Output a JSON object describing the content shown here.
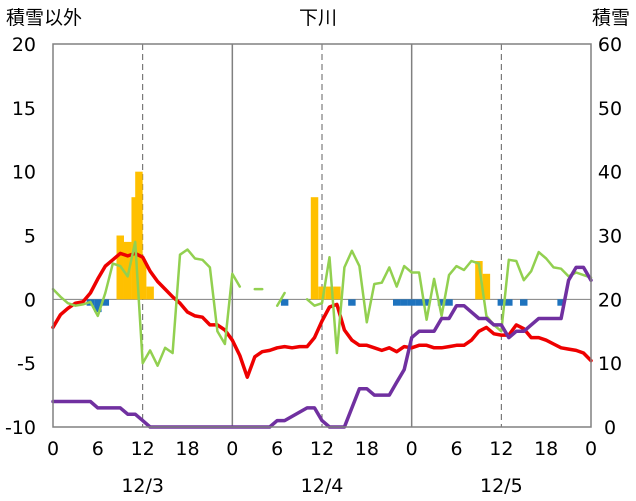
{
  "chart_data": {
    "type": "bar+line",
    "title": "下川",
    "ylabel_left": "積雪以外",
    "ylabel_right": "積雪",
    "ylim_left": [
      -10,
      20
    ],
    "ylim_right": [
      0,
      60
    ],
    "yticks_left": [
      "-10",
      "-5",
      "0",
      "5",
      "10",
      "15",
      "20"
    ],
    "yticks_right": [
      "0",
      "10",
      "20",
      "30",
      "40",
      "50",
      "60"
    ],
    "x_range_hours": [
      0,
      72
    ],
    "xtick_labels": [
      "0",
      "6",
      "12",
      "18",
      "0",
      "6",
      "12",
      "18",
      "0",
      "6",
      "12",
      "18",
      "0"
    ],
    "date_labels": [
      {
        "label": "12/3",
        "hour": 12
      },
      {
        "label": "12/4",
        "hour": 36
      },
      {
        "label": "12/5",
        "hour": 60
      }
    ],
    "grid": {
      "day_lines_solid_hours": [
        24,
        48
      ],
      "noon_lines_dashed_hours": [
        12,
        36,
        60
      ]
    },
    "colors": {
      "orange": "#ffc000",
      "blue": "#1e73be",
      "red": "#ee0000",
      "green": "#92d050",
      "purple": "#7030a0",
      "grid_solid": "#808080",
      "grid_dashed": "#606060"
    },
    "series": [
      {
        "kind": "bar",
        "axis": "left",
        "color": "#ffc000",
        "x": [
          9,
          10,
          11,
          11.5,
          12,
          13,
          35,
          36,
          37,
          38,
          57,
          58
        ],
        "y": [
          5,
          4.5,
          8,
          10,
          3,
          1,
          8,
          1,
          1,
          1,
          3,
          2
        ]
      },
      {
        "kind": "bar",
        "axis": "left",
        "color": "#1e73be",
        "baseline": 0,
        "x": [
          5,
          6,
          7,
          31,
          40,
          46,
          47,
          48,
          49,
          50,
          52,
          53,
          60,
          61,
          63,
          68
        ],
        "y": [
          -0.5,
          -1,
          -0.5,
          -0.5,
          -0.5,
          -0.5,
          -0.5,
          -0.5,
          -0.5,
          -0.5,
          -0.5,
          -0.5,
          -0.5,
          -0.5,
          -0.5,
          -0.5
        ]
      },
      {
        "kind": "line",
        "axis": "left",
        "color": "#ee0000",
        "x": [
          0,
          1,
          2,
          3,
          4,
          5,
          6,
          7,
          8,
          9,
          10,
          11,
          12,
          13,
          14,
          15,
          16,
          17,
          18,
          19,
          20,
          21,
          22,
          23,
          24,
          25,
          26,
          27,
          28,
          29,
          30,
          31,
          32,
          33,
          34,
          35,
          36,
          37,
          38,
          39,
          40,
          41,
          42,
          43,
          44,
          45,
          46,
          47,
          48,
          49,
          50,
          51,
          52,
          53,
          54,
          55,
          56,
          57,
          58,
          59,
          60,
          61,
          62,
          63,
          64,
          65,
          66,
          67,
          68,
          69,
          70,
          71,
          72
        ],
        "y": [
          -2.2,
          -1.2,
          -0.7,
          -0.3,
          -0.2,
          0.5,
          1.6,
          2.6,
          3.1,
          3.6,
          3.4,
          3.6,
          3.3,
          2.2,
          1.4,
          0.8,
          0.2,
          -0.3,
          -1,
          -1.3,
          -1.4,
          -2,
          -2,
          -2.4,
          -3.2,
          -4.4,
          -6.1,
          -4.5,
          -4.1,
          -4,
          -3.8,
          -3.7,
          -3.8,
          -3.7,
          -3.7,
          -3,
          -1.7,
          -0.6,
          -0.4,
          -2.4,
          -3.2,
          -3.6,
          -3.6,
          -3.8,
          -4,
          -3.8,
          -4.1,
          -3.7,
          -3.8,
          -3.6,
          -3.6,
          -3.8,
          -3.8,
          -3.7,
          -3.6,
          -3.6,
          -3.2,
          -2.5,
          -2.2,
          -2.7,
          -2.8,
          -2.8,
          -2,
          -2.3,
          -3,
          -3,
          -3.2,
          -3.5,
          -3.8,
          -3.9,
          -4,
          -4.2,
          -4.8
        ]
      },
      {
        "kind": "line",
        "axis": "left",
        "color": "#92d050",
        "segments": [
          {
            "x": [
              0,
              1,
              2,
              3,
              4,
              5,
              6,
              7,
              8,
              9,
              10,
              11,
              12,
              13,
              14,
              15,
              16,
              17,
              18,
              19,
              20,
              21,
              22,
              23,
              24,
              25
            ],
            "y": [
              0.8,
              0.2,
              -0.3,
              -0.5,
              -0.4,
              -0.2,
              -1.3,
              0.5,
              2.8,
              2.6,
              1.8,
              4.5,
              -5,
              -4,
              -5.2,
              -3.8,
              -4.2,
              3.5,
              3.9,
              3.2,
              3.1,
              2.5,
              -2.5,
              -3.5,
              2,
              1
            ]
          },
          {
            "x": [
              27,
              28
            ],
            "y": [
              0.8,
              0.8
            ]
          },
          {
            "x": [
              30,
              31
            ],
            "y": [
              -0.5,
              0.5
            ]
          },
          {
            "x": [
              34,
              35,
              36,
              37,
              38,
              39,
              40,
              41,
              42,
              43,
              44,
              45,
              46,
              47,
              48,
              49,
              50,
              51,
              52,
              53,
              54,
              55,
              56,
              57,
              58,
              59,
              60,
              61,
              62,
              63,
              64,
              65,
              66,
              67,
              68,
              69,
              70,
              71,
              72
            ],
            "y": [
              0,
              -0.5,
              -0.3,
              3.3,
              -4.2,
              2.5,
              3.8,
              2.6,
              -1.8,
              1.2,
              1.3,
              2.5,
              1,
              2.6,
              2.1,
              2.1,
              -1.6,
              1.6,
              -1.3,
              1.9,
              2.6,
              2.3,
              3,
              2.8,
              -1.3,
              -2,
              -2.5,
              3.1,
              3,
              1.5,
              2.2,
              3.7,
              3.2,
              2.5,
              2.4,
              1.8,
              2.1,
              1.9,
              1.7
            ]
          }
        ]
      },
      {
        "kind": "line",
        "axis": "right",
        "color": "#7030a0",
        "x": [
          0,
          5,
          6,
          9,
          10,
          11,
          12,
          13,
          24,
          29,
          30,
          31,
          34,
          35,
          36,
          37,
          38,
          39,
          40,
          41,
          42,
          43,
          44,
          45,
          46,
          47,
          48,
          49,
          50,
          51,
          52,
          53,
          54,
          55,
          56,
          57,
          58,
          59,
          60,
          61,
          62,
          63,
          64,
          65,
          66,
          67,
          68,
          69,
          70,
          71,
          72
        ],
        "y": [
          4,
          4,
          3,
          3,
          2,
          2,
          1,
          0,
          0,
          0,
          1,
          1,
          3,
          3,
          1,
          0,
          0,
          0,
          3,
          6,
          6,
          5,
          5,
          5,
          7,
          9,
          14,
          15,
          15,
          15,
          17,
          17,
          19,
          19,
          18,
          17,
          17,
          16,
          16,
          14,
          15,
          15,
          16,
          17,
          17,
          17,
          17,
          23,
          25,
          25,
          23
        ]
      }
    ]
  }
}
